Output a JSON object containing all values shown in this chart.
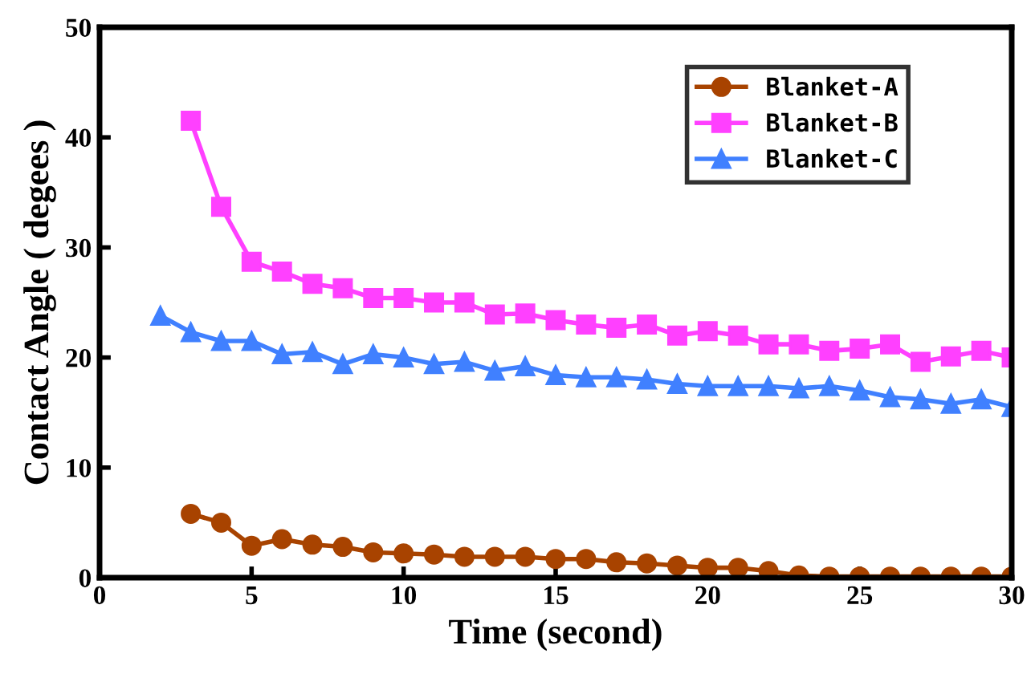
{
  "chart_data": {
    "type": "line",
    "xlabel": "Time (second)",
    "ylabel": "Contact Angle ( degees )",
    "xlim": [
      0,
      30
    ],
    "xticks": [
      0,
      5,
      10,
      15,
      20,
      25,
      30
    ],
    "ylim": [
      0,
      50
    ],
    "yticks": [
      0,
      10,
      20,
      30,
      40,
      50
    ],
    "grid": false,
    "legend": "top right",
    "series": [
      {
        "name": "Blanket-A",
        "color": "#a84300",
        "marker": "circle",
        "x": [
          3,
          4,
          5,
          6,
          7,
          8,
          9,
          10,
          11,
          12,
          13,
          14,
          15,
          16,
          17,
          18,
          19,
          20,
          21,
          22,
          23,
          24,
          25,
          26,
          27,
          28,
          29,
          30
        ],
        "values": [
          5.8,
          5.0,
          2.9,
          3.5,
          3.0,
          2.8,
          2.3,
          2.2,
          2.1,
          1.9,
          1.9,
          1.9,
          1.7,
          1.7,
          1.4,
          1.3,
          1.1,
          0.9,
          0.9,
          0.6,
          0.2,
          0.1,
          0.1,
          0.1,
          0.1,
          0.1,
          0.1,
          0.1
        ]
      },
      {
        "name": "Blanket-B",
        "color": "#ff40ff",
        "marker": "square",
        "x": [
          3,
          4,
          5,
          6,
          7,
          8,
          9,
          10,
          11,
          12,
          13,
          14,
          15,
          16,
          17,
          18,
          19,
          20,
          21,
          22,
          23,
          24,
          25,
          26,
          27,
          28,
          29,
          30
        ],
        "values": [
          41.5,
          33.7,
          28.7,
          27.8,
          26.7,
          26.3,
          25.4,
          25.4,
          25.0,
          25.0,
          23.9,
          24.0,
          23.4,
          23.0,
          22.7,
          23.0,
          22.0,
          22.4,
          22.0,
          21.2,
          21.2,
          20.6,
          20.8,
          21.2,
          19.6,
          20.1,
          20.6,
          20.0
        ]
      },
      {
        "name": "Blanket-C",
        "color": "#4080ff",
        "marker": "triangle",
        "x": [
          2,
          3,
          4,
          5,
          6,
          7,
          8,
          9,
          10,
          11,
          12,
          13,
          14,
          15,
          16,
          17,
          18,
          19,
          20,
          21,
          22,
          23,
          24,
          25,
          26,
          27,
          28,
          29,
          30
        ],
        "values": [
          23.8,
          22.3,
          21.5,
          21.5,
          20.3,
          20.5,
          19.4,
          20.3,
          20.0,
          19.4,
          19.6,
          18.8,
          19.2,
          18.4,
          18.2,
          18.2,
          18.0,
          17.6,
          17.4,
          17.4,
          17.4,
          17.2,
          17.4,
          17.0,
          16.4,
          16.2,
          15.8,
          16.2,
          15.5
        ]
      }
    ]
  }
}
